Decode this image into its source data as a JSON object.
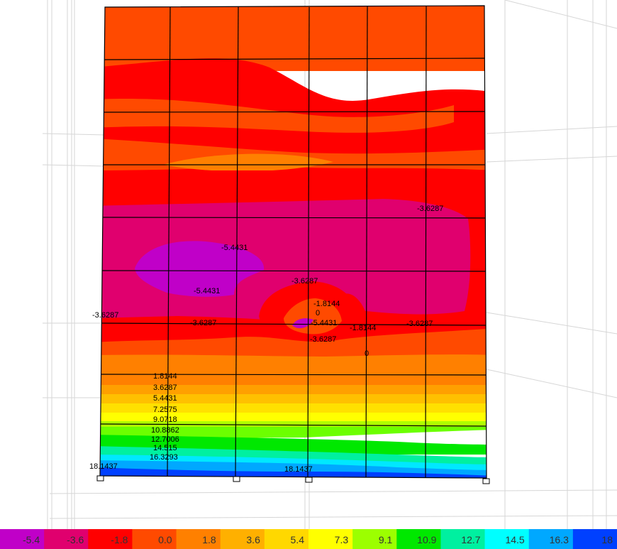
{
  "contour_labels": [
    {
      "text": "-3.6287"
    },
    {
      "text": "-5.4431"
    },
    {
      "text": "-5.4431"
    },
    {
      "text": "-3.6287"
    },
    {
      "text": "-1.8144"
    },
    {
      "text": "0"
    },
    {
      "text": "-3.6287"
    },
    {
      "text": "-3.6287"
    },
    {
      "text": "-5.4431"
    },
    {
      "text": "-1.8144"
    },
    {
      "text": "-3.6287"
    },
    {
      "text": "-3.6287"
    },
    {
      "text": "0"
    },
    {
      "text": "1.8144"
    },
    {
      "text": "3.6287"
    },
    {
      "text": "5.4431"
    },
    {
      "text": "7.2575"
    },
    {
      "text": "9.0718"
    },
    {
      "text": "10.8862"
    },
    {
      "text": "12.7006"
    },
    {
      "text": "14.515"
    },
    {
      "text": "16.3293"
    },
    {
      "text": "18.1437"
    },
    {
      "text": "18.1437"
    }
  ],
  "legend": {
    "items": [
      {
        "label": "-5.4",
        "color": "#c000c8"
      },
      {
        "label": "-3.6",
        "color": "#e0006e"
      },
      {
        "label": "-1.8",
        "color": "#ff0000"
      },
      {
        "label": "0.0",
        "color": "#ff4a00"
      },
      {
        "label": "1.8",
        "color": "#ff8000"
      },
      {
        "label": "3.6",
        "color": "#ffb000"
      },
      {
        "label": "5.4",
        "color": "#ffd800"
      },
      {
        "label": "7.3",
        "color": "#ffff00"
      },
      {
        "label": "9.1",
        "color": "#9cff00"
      },
      {
        "label": "10.9",
        "color": "#00e800"
      },
      {
        "label": "12.7",
        "color": "#00f0a0"
      },
      {
        "label": "14.5",
        "color": "#00ffff"
      },
      {
        "label": "16.3",
        "color": "#00a8ff"
      },
      {
        "label": "18",
        "color": "#0040ff"
      }
    ]
  }
}
